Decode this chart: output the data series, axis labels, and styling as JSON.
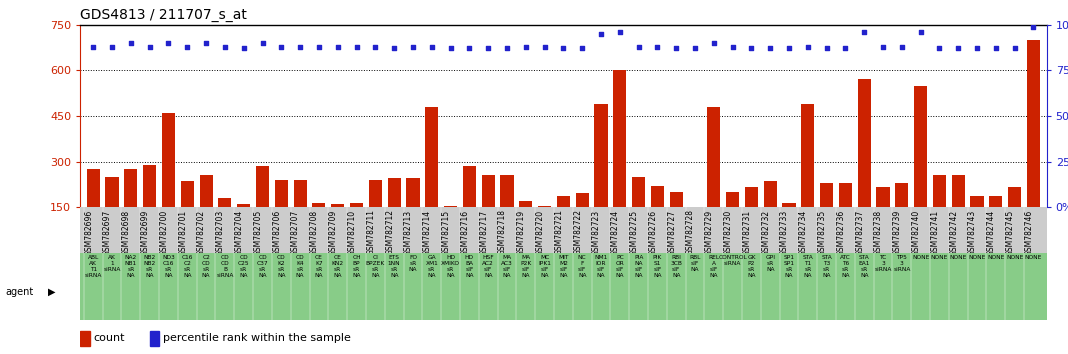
{
  "title": "GDS4813 / 211707_s_at",
  "samples": [
    "GSM782696",
    "GSM782697",
    "GSM782698",
    "GSM782699",
    "GSM782700",
    "GSM782701",
    "GSM782702",
    "GSM782703",
    "GSM782704",
    "GSM782705",
    "GSM782706",
    "GSM782707",
    "GSM782708",
    "GSM782709",
    "GSM782710",
    "GSM782711",
    "GSM782712",
    "GSM782713",
    "GSM782714",
    "GSM782715",
    "GSM782716",
    "GSM782717",
    "GSM782718",
    "GSM782719",
    "GSM782720",
    "GSM782721",
    "GSM782722",
    "GSM782723",
    "GSM782724",
    "GSM782725",
    "GSM782726",
    "GSM782727",
    "GSM782728",
    "GSM782729",
    "GSM782730",
    "GSM782731",
    "GSM782732",
    "GSM782733",
    "GSM782734",
    "GSM782735",
    "GSM782736",
    "GSM782737",
    "GSM782738",
    "GSM782739",
    "GSM782740",
    "GSM782741",
    "GSM782742",
    "GSM782743",
    "GSM782744",
    "GSM782745",
    "GSM782746"
  ],
  "counts": [
    275,
    250,
    275,
    290,
    460,
    235,
    255,
    180,
    160,
    285,
    240,
    240,
    165,
    160,
    165,
    240,
    245,
    245,
    480,
    155,
    285,
    255,
    255,
    170,
    155,
    185,
    195,
    490,
    600,
    250,
    220,
    200,
    135,
    480,
    200,
    215,
    235,
    165,
    490,
    230,
    230,
    570,
    215,
    230,
    550,
    255,
    255,
    185,
    185,
    215,
    700
  ],
  "percentiles": [
    88,
    88,
    90,
    88,
    90,
    88,
    90,
    88,
    87,
    90,
    88,
    88,
    88,
    88,
    88,
    88,
    87,
    88,
    88,
    87,
    87,
    87,
    87,
    88,
    88,
    87,
    87,
    95,
    96,
    88,
    88,
    87,
    87,
    90,
    88,
    87,
    87,
    87,
    88,
    87,
    87,
    96,
    88,
    88,
    96,
    87,
    87,
    87,
    87,
    87,
    99
  ],
  "agent_labels": [
    "ABL\nAK\nT1\nsiRNA",
    "AK\n1\nsiRNA",
    "NA2\nNB1\nsR\nNA",
    "NB2\nNB2\nsR\nNA",
    "ND3\nC16\nsR\nNA",
    "C16\nC2\nsR\nNA",
    "C2\nCD\nsR\nNA",
    "CD\nCD\nB\nsiRNA",
    "CD\nC25\nsR\nNA",
    "CD\nC37\nsR\nNA",
    "CD\nK2\nsR\nNA",
    "CD\nK4\nsR\nNA",
    "CE\nK7\nsR\nNA",
    "CE\nKN2\nsR\nNA",
    "CH\nBP\nsR\nNA",
    "CI\nBPZEK\nsR\nNA",
    "ETS\n1NN\nsR\nNA",
    "FO\nsR\nNA",
    "GA\nXM1\nsR\nNA",
    "HD\nXMIKO\nsR\nNA",
    "HD\nBA\nsIF\nNA",
    "HSF\nAC2\nsIF\nNA",
    "MA\nAC3\nsIF\nNA",
    "MA\nP2K\nsIF\nNA",
    "MC\nIPK1\nsIF\nNA",
    "MIT\nM2\nsIF\nNA",
    "NC\nF\nsIF\nNA",
    "NM1\nIOR\nsIF\nNA",
    "PC\nOR\nsIF\nNA",
    "PIA\nNA\nsIF\nNA",
    "PIK\nS1\nsIF\nNA",
    "RBI\n3CB\nsIF\nNA",
    "RBL\nsIF\nNA",
    "REL\nA\nsIF\nNA",
    "CONTROL\nsiRNA",
    "GK\nP2\nsR\nNA",
    "GPI\nsR\nNA",
    "SP1\nSP1\nsR\nNA",
    "STA\nT1\nsR\nNA",
    "STA\nT3\nsR\nNA",
    "ATC\nT6\nsR\nNA",
    "STA\nEA1\nsR\nNA",
    "TC\n3\nsiRNA",
    "TP5\n3\nsiRNA",
    "NONE",
    "NONE",
    "NONE",
    "NONE",
    "NONE",
    "NONE",
    "NONE"
  ],
  "ylim_left": [
    150,
    750
  ],
  "ylim_right": [
    0,
    100
  ],
  "yticks_left": [
    150,
    300,
    450,
    600,
    750
  ],
  "yticks_right": [
    0,
    25,
    50,
    75,
    100
  ],
  "bar_color": "#cc2200",
  "dot_color": "#2222cc",
  "title_color": "#000000",
  "left_axis_color": "#cc2200",
  "right_axis_color": "#2222cc",
  "agent_bg_color": "#88cc88",
  "sample_bg_color": "#cccccc"
}
